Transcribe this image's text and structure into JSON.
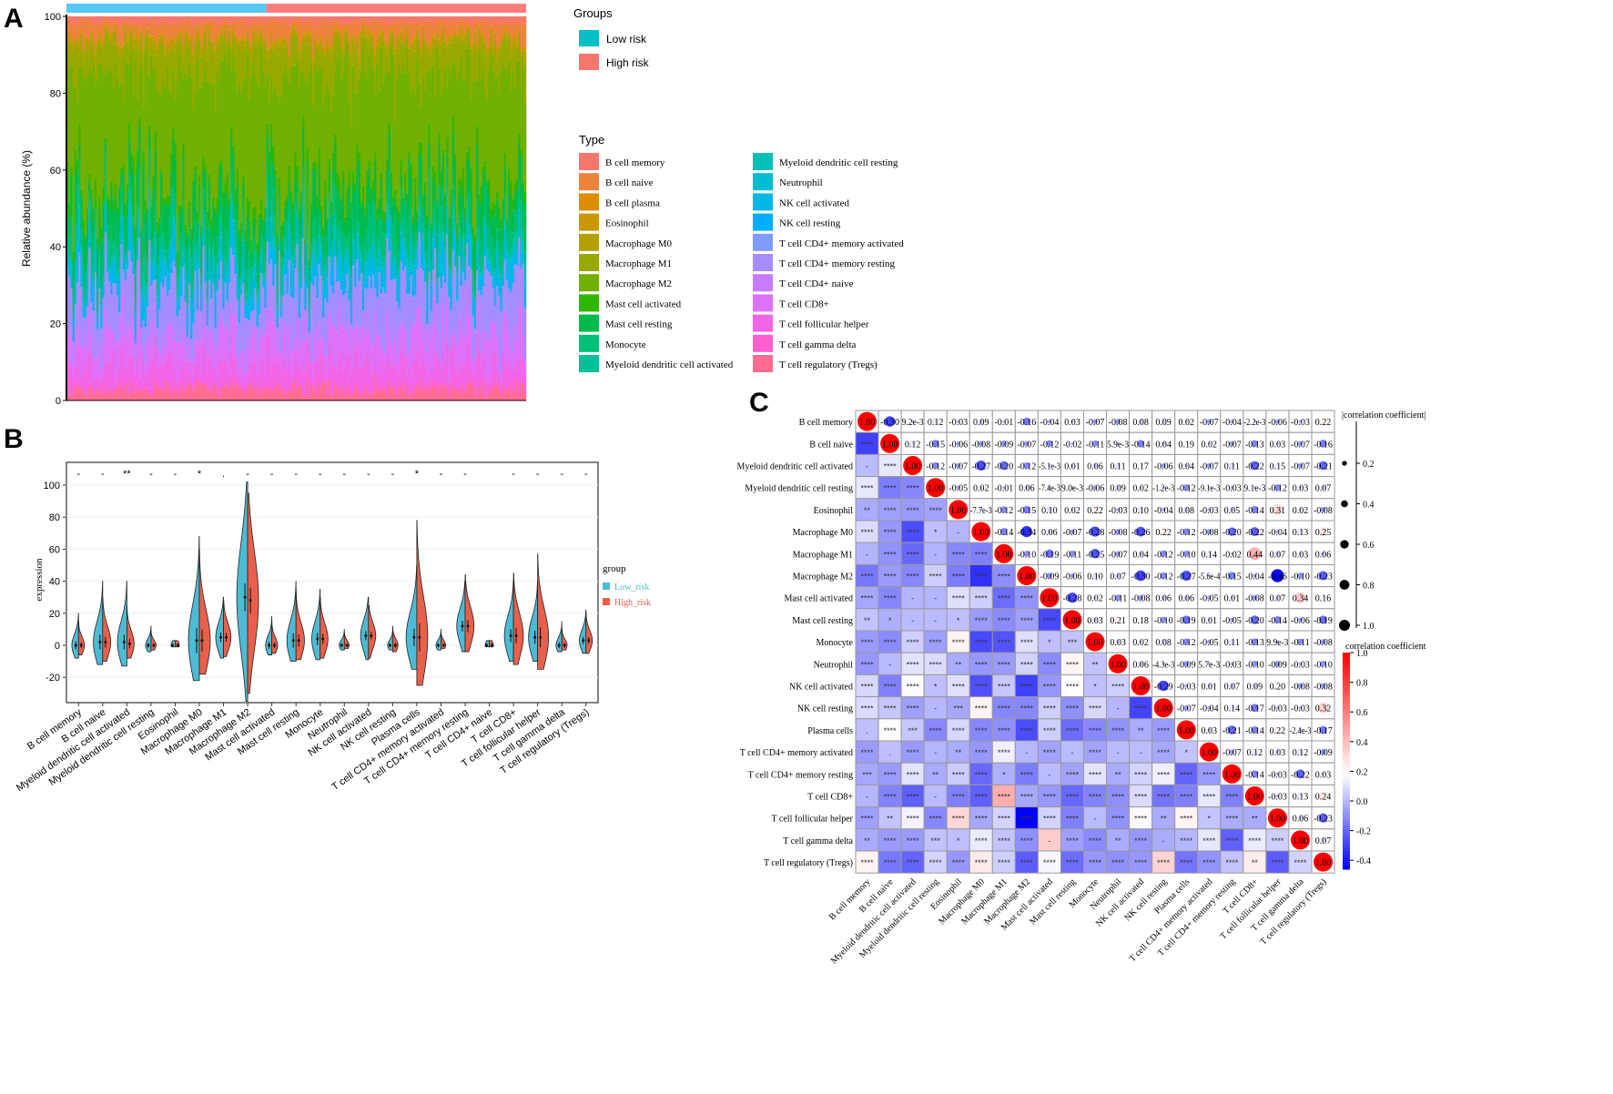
{
  "panels": {
    "a": "A",
    "b": "B",
    "c": "C"
  },
  "chart_data": [
    {
      "type": "bar",
      "subtype": "stacked-100",
      "title": "",
      "ylabel": "Relative abundance (%)",
      "ylim": [
        0,
        100
      ],
      "yticks": [
        "0",
        "20",
        "40",
        "60",
        "80",
        "100"
      ],
      "groups_legend": {
        "title": "Groups",
        "items": [
          {
            "name": "Low risk",
            "color": "#00BFC4"
          },
          {
            "name": "High risk",
            "color": "#F8766D"
          }
        ]
      },
      "group_bar_colors": {
        "low": "#56C8F5",
        "high": "#FF7F7F"
      },
      "n_low": 100,
      "n_high": 130,
      "type_legend_title": "Type",
      "types": [
        {
          "name": "B cell memory",
          "color": "#F8766D",
          "mean_pct": 1.5
        },
        {
          "name": "B cell naive",
          "color": "#EC823C",
          "mean_pct": 4
        },
        {
          "name": "B cell plasma",
          "color": "#DD8D00",
          "mean_pct": 0.5
        },
        {
          "name": "Eosinophil",
          "color": "#CA9700",
          "mean_pct": 0.3
        },
        {
          "name": "Macrophage M0",
          "color": "#B3A000",
          "mean_pct": 2
        },
        {
          "name": "Macrophage M1",
          "color": "#97A900",
          "mean_pct": 8
        },
        {
          "name": "Macrophage M2",
          "color": "#71B000",
          "mean_pct": 30
        },
        {
          "name": "Mast cell activated",
          "color": "#2FB600",
          "mean_pct": 3
        },
        {
          "name": "Mast cell resting",
          "color": "#00BB4B",
          "mean_pct": 8
        },
        {
          "name": "Monocyte",
          "color": "#00BF76",
          "mean_pct": 6
        },
        {
          "name": "Myeloid dendritic cell activated",
          "color": "#00C098",
          "mean_pct": 2
        },
        {
          "name": "Myeloid dendritic cell resting",
          "color": "#00C0B7",
          "mean_pct": 1
        },
        {
          "name": "Neutrophil",
          "color": "#00BDD1",
          "mean_pct": 1
        },
        {
          "name": "NK cell activated",
          "color": "#00B7E8",
          "mean_pct": 5
        },
        {
          "name": "NK cell resting",
          "color": "#00AEFA",
          "mean_pct": 1
        },
        {
          "name": "T cell CD4+ memory activated",
          "color": "#7F9BFF",
          "mean_pct": 0.5
        },
        {
          "name": "T cell CD4+ memory resting",
          "color": "#A58CFF",
          "mean_pct": 12
        },
        {
          "name": "T cell CD4+ naive",
          "color": "#C77CFF",
          "mean_pct": 0.5
        },
        {
          "name": "T cell CD8+",
          "color": "#DE71F9",
          "mean_pct": 8
        },
        {
          "name": "T cell follicular helper",
          "color": "#F265E7",
          "mean_pct": 6
        },
        {
          "name": "T cell gamma delta",
          "color": "#FE61CF",
          "mean_pct": 1
        },
        {
          "name": "T cell regulatory (Tregs)",
          "color": "#FF6C91",
          "mean_pct": 3
        }
      ]
    },
    {
      "type": "violin",
      "ylabel": "expression",
      "ylim": [
        -30,
        110
      ],
      "yticks": [
        "-20",
        "0",
        "20",
        "40",
        "60",
        "80",
        "100"
      ],
      "legend": {
        "title": "group",
        "items": [
          {
            "name": "Low_risk",
            "color": "#4DBBD5"
          },
          {
            "name": "High_risk",
            "color": "#E8604C"
          }
        ]
      },
      "categories": [
        "B cell memory",
        "B cell naive",
        "Myeloid dendritic cell activated",
        "Myeloid dendritic cell resting",
        "Eosinophil",
        "Macrophage M0",
        "Macrophage M1",
        "Macrophage M2",
        "Mast cell activated",
        "Mast cell resting",
        "Monocyte",
        "Neutrophil",
        "NK cell activated",
        "NK cell resting",
        "Plasma cells",
        "T cell CD4+ memory activated",
        "T cell CD4+ memory resting",
        "T cell CD4+ naive",
        "T cell CD8+",
        "T cell follicular helper",
        "T cell gamma delta",
        "T cell regulatory (Tregs)"
      ],
      "significance": [
        "-",
        "-",
        "**",
        "-",
        "-",
        "*",
        ".",
        "-",
        "-",
        "-",
        "-",
        "-",
        "-",
        "-",
        "*",
        "-",
        "-",
        "",
        "-",
        "-",
        "-",
        "-"
      ],
      "series": [
        {
          "name": "Low_risk",
          "median": [
            0,
            2,
            2,
            0,
            0,
            3,
            5,
            30,
            0,
            3,
            4,
            0,
            6,
            0,
            5,
            0,
            12,
            0,
            6,
            5,
            0,
            3
          ],
          "max": [
            20,
            40,
            40,
            12,
            3,
            68,
            30,
            102,
            18,
            40,
            35,
            10,
            30,
            10,
            50,
            10,
            40,
            3,
            40,
            40,
            15,
            22
          ],
          "min": [
            -8,
            -12,
            -13,
            -4,
            -1,
            -22,
            -8,
            -35,
            -6,
            -10,
            -9,
            -3,
            -9,
            -3,
            -15,
            -3,
            -4,
            -1,
            -10,
            -10,
            -4,
            -5
          ]
        },
        {
          "name": "High_risk",
          "median": [
            0,
            2,
            1,
            0,
            0,
            3,
            5,
            28,
            0,
            3,
            4,
            0,
            6,
            0,
            5,
            0,
            12,
            0,
            6,
            5,
            0,
            3
          ],
          "max": [
            15,
            30,
            25,
            10,
            3,
            60,
            28,
            95,
            15,
            35,
            30,
            8,
            25,
            12,
            78,
            8,
            44,
            3,
            45,
            57,
            12,
            20
          ],
          "min": [
            -6,
            -10,
            -8,
            -3,
            -1,
            -18,
            -7,
            -30,
            -5,
            -9,
            -8,
            -2,
            -8,
            -4,
            -25,
            -2,
            -4,
            -1,
            -12,
            -15,
            -3,
            -5
          ]
        }
      ]
    },
    {
      "type": "heatmap",
      "subtype": "correlation-matrix",
      "labels": [
        "B cell memory",
        "B cell naive",
        "Myeloid dendritic cell activated",
        "Myeloid dendritic cell resting",
        "Eosinophil",
        "Macrophage M0",
        "Macrophage M1",
        "Macrophage M2",
        "Mast cell activated",
        "Mast cell resting",
        "Monocyte",
        "Neutrophil",
        "NK cell activated",
        "NK cell resting",
        "Plasma cells",
        "T cell CD4+ memory activated",
        "T cell CD4+ memory resting",
        "T cell CD8+",
        "T cell follicular helper",
        "T cell gamma delta",
        "T cell regulatory (Tregs)"
      ],
      "diagonal_label": "1.00",
      "upper_values": [
        [
          "-0.30",
          "9.2e-3",
          "0.12",
          "-0.03",
          "0.09",
          "-0.01",
          "-0.16",
          "-0.04",
          "0.03",
          "-0.07",
          "-0.08",
          "0.08",
          "0.09",
          "0.02",
          "-0.07",
          "-0.04",
          "-2.2e-3",
          "-0.06",
          "-0.03",
          "0.22"
        ],
        [
          "0.12",
          "-0.15",
          "-0.06",
          "-0.08",
          "-0.09",
          "-0.07",
          "-0.12",
          "-0.02",
          "-0.11",
          "5.9e-3",
          "-0.14",
          "0.04",
          "0.19",
          "0.02",
          "-0.07",
          "-0.13",
          "0.03",
          "-0.07",
          "-0.16"
        ],
        [
          "-0.12",
          "-0.07",
          "-0.27",
          "-0.20",
          "-0.12",
          "-5.1e-3",
          "0.01",
          "0.06",
          "0.11",
          "0.17",
          "-0.06",
          "0.04",
          "-0.07",
          "0.11",
          "-0.22",
          "0.15",
          "-0.07",
          "-0.21"
        ],
        [
          "-0.05",
          "0.02",
          "-0.01",
          "0.06",
          "-7.4e-3",
          "9.0e-3",
          "-0.06",
          "0.09",
          "0.02",
          "-1.2e-3",
          "-0.12",
          "-9.1e-3",
          "-0.03",
          "9.1e-3",
          "-0.12",
          "0.03",
          "0.07"
        ],
        [
          "-7.7e-3",
          "-0.12",
          "-0.15",
          "0.10",
          "0.02",
          "0.22",
          "-0.03",
          "0.10",
          "-0.04",
          "0.08",
          "-0.03",
          "0.05",
          "-0.14",
          "0.31",
          "0.02",
          "-0.08"
        ],
        [
          "-0.14",
          "-0.34",
          "0.06",
          "-0.07",
          "-0.28",
          "-0.08",
          "-0.26",
          "0.22",
          "-0.12",
          "-0.08",
          "-0.20",
          "-0.22",
          "-0.04",
          "0.13",
          "0.25"
        ],
        [
          "-0.10",
          "-0.19",
          "-0.11",
          "-0.25",
          "-0.07",
          "0.04",
          "-0.12",
          "-0.10",
          "0.14",
          "-0.02",
          "0.44",
          "0.07",
          "0.03",
          "0.06"
        ],
        [
          "-0.09",
          "-0.06",
          "0.10",
          "0.07",
          "-0.30",
          "-0.12",
          "-0.27",
          "-5.6e-4",
          "-0.15",
          "-0.04",
          "-0.46",
          "-0.10",
          "-0.23"
        ],
        [
          "-0.28",
          "0.02",
          "-0.11",
          "-0.08",
          "0.06",
          "0.06",
          "-0.05",
          "0.01",
          "-0.08",
          "0.07",
          "0.34",
          "0.16"
        ],
        [
          "0.03",
          "0.21",
          "0.18",
          "-0.10",
          "-0.19",
          "0.01",
          "-0.05",
          "-0.20",
          "-0.14",
          "-0.06",
          "-0.19"
        ],
        [
          "0.03",
          "0.02",
          "0.08",
          "-0.12",
          "-0.05",
          "0.11",
          "-0.13",
          "9.9e-3",
          "-0.11",
          "-0.08"
        ],
        [
          "0.06",
          "-4.3e-3",
          "-0.09",
          "5.7e-3",
          "-0.03",
          "-0.10",
          "-0.09",
          "-0.03",
          "-0.10"
        ],
        [
          "-0.29",
          "-0.03",
          "0.01",
          "0.07",
          "0.09",
          "0.20",
          "-0.08",
          "-0.08"
        ],
        [
          "-0.07",
          "-0.04",
          "0.14",
          "-0.17",
          "-0.03",
          "-0.03",
          "0.32"
        ],
        [
          "0.03",
          "-0.21",
          "-0.14",
          "0.22",
          "-2.4e-3",
          "-0.17"
        ],
        [
          "-0.07",
          "0.12",
          "0.03",
          "0.12",
          "-0.09"
        ],
        [
          "-0.14",
          "-0.03",
          "-0.22",
          "0.03"
        ],
        [
          "-0.03",
          "0.13",
          "0.24"
        ],
        [
          "0.06",
          "-0.23"
        ],
        [
          "0.07"
        ]
      ],
      "lower_significance": [
        [],
        [
          "****"
        ],
        [
          "-",
          "****"
        ],
        [
          "****",
          "****",
          "****"
        ],
        [
          "**",
          "****",
          "****",
          "****"
        ],
        [
          "****",
          "****",
          "****",
          "*",
          "-"
        ],
        [
          "-",
          "****",
          "****",
          "-",
          "****",
          "****"
        ],
        [
          "****",
          "****",
          "****",
          "****",
          "****",
          "****",
          "****"
        ],
        [
          "****",
          "****",
          "-",
          "-",
          "****",
          "****",
          "****",
          "****"
        ],
        [
          "**",
          "*",
          "-",
          "-",
          "*",
          "****",
          "****",
          "****",
          "****"
        ],
        [
          "****",
          "****",
          "****",
          "****",
          "****",
          "****",
          "****",
          "****",
          "*",
          "***"
        ],
        [
          "****",
          "-",
          "****",
          "****",
          "**",
          "****",
          "****",
          "****",
          "****",
          "****",
          "**"
        ],
        [
          "****",
          "****",
          "****",
          "*",
          "****",
          "****",
          "****",
          "****",
          "****",
          "****",
          "*",
          "****"
        ],
        [
          "****",
          "****",
          "****",
          "-",
          "***",
          "****",
          "****",
          "****",
          "****",
          "****",
          "****",
          "-",
          "****"
        ],
        [
          ".",
          "****",
          "***",
          "****",
          "****",
          "****",
          "****",
          "****",
          "****",
          "****",
          "****",
          "****",
          "**",
          "****"
        ],
        [
          "****",
          ".",
          "****",
          "-",
          "**",
          "****",
          "****",
          "-",
          "****",
          "-",
          "****",
          "-",
          "-",
          "****",
          "*"
        ],
        [
          "***",
          "****",
          "****",
          "**",
          "****",
          "****",
          "*",
          "****",
          "-",
          "****",
          "****",
          "**",
          "****",
          "****",
          "****",
          "****"
        ],
        [
          "-",
          "****",
          "****",
          "-",
          "****",
          "****",
          "****",
          "****",
          "****",
          "****",
          "****",
          "****",
          "****",
          "****",
          "****",
          "****",
          "****"
        ],
        [
          "****",
          "**",
          "****",
          "****",
          "****",
          "****",
          "****",
          "****",
          "****",
          "****",
          "-",
          "****",
          "****",
          "**",
          "****",
          "*",
          "****",
          "**"
        ],
        [
          "**",
          "****",
          "****",
          "***",
          "*",
          "****",
          "****",
          "****",
          "-",
          "****",
          "****",
          "**",
          "****",
          "-",
          "****",
          "****",
          "****",
          "****",
          "****"
        ],
        [
          "****",
          "****",
          "****",
          "****",
          "****",
          "****",
          "****",
          "****",
          "****",
          "****",
          "****",
          "****",
          "****",
          "****",
          "****",
          "****",
          "****",
          "**",
          "****",
          "****"
        ]
      ],
      "size_legend": {
        "title": "|correlation coefficient|",
        "ticks": [
          "0.2",
          "0.4",
          "0.6",
          "0.8",
          "1.0"
        ]
      },
      "color_legend": {
        "title": "correlation coefficient",
        "ticks": [
          "1.0",
          "0.8",
          "0.6",
          "0.4",
          "0.2",
          "0.0",
          "-0.2",
          "-0.4"
        ],
        "range": [
          -0.46,
          1.0
        ],
        "low_color": "#0000FF",
        "mid_color": "#FFFFFF",
        "high_color": "#FF0000"
      }
    }
  ]
}
